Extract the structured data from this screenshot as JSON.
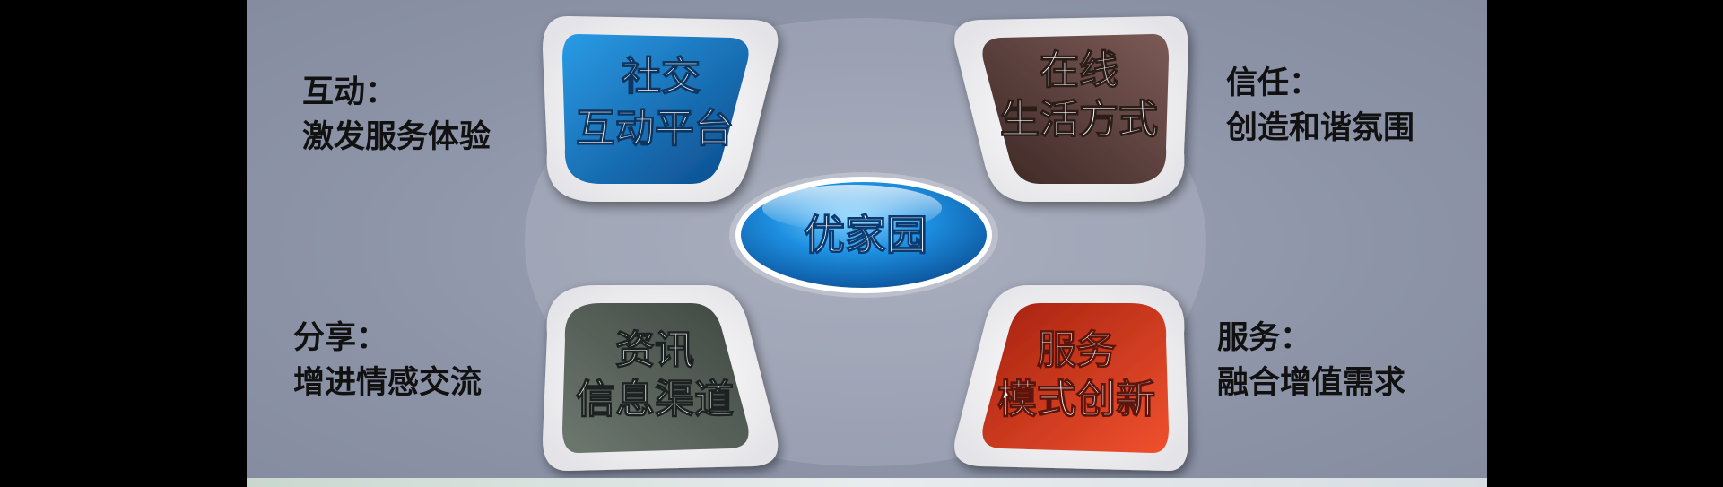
{
  "center": {
    "label": "优家园"
  },
  "petals": [
    {
      "id": "top-left",
      "line1": "社交",
      "line2": "互动平台",
      "color": "#1b87d1"
    },
    {
      "id": "top-right",
      "line1": "在线",
      "line2": "生活方式",
      "color": "#6a4a47"
    },
    {
      "id": "bottom-left",
      "line1": "资讯",
      "line2": "信息渠道",
      "color": "#5e6a62"
    },
    {
      "id": "bottom-right",
      "line1": "服务",
      "line2": "模式创新",
      "color": "#d83a22"
    }
  ],
  "side_labels": [
    {
      "id": "top-left",
      "line1": "互动：",
      "line2": "激发服务体验"
    },
    {
      "id": "top-right",
      "line1": "信任：",
      "line2": "创造和谐氛围"
    },
    {
      "id": "bottom-left",
      "line1": "分享：",
      "line2": "增进情感交流"
    },
    {
      "id": "bottom-right",
      "line1": "服务：",
      "line2": "融合增值需求"
    }
  ]
}
